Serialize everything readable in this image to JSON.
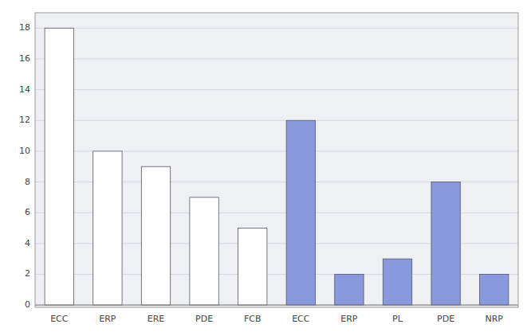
{
  "chart_data": {
    "type": "bar",
    "categories": [
      "ECC",
      "ERP",
      "ERE",
      "PDE",
      "FCB",
      "ECC",
      "ERP",
      "PL",
      "PDE",
      "NRP"
    ],
    "values": [
      18,
      10,
      9,
      7,
      5,
      12,
      2,
      3,
      8,
      2
    ],
    "colors": [
      "#ffffff",
      "#ffffff",
      "#ffffff",
      "#ffffff",
      "#ffffff",
      "#8899dd",
      "#8899dd",
      "#8899dd",
      "#8899dd",
      "#8899dd"
    ],
    "ylim": [
      -0.15,
      19
    ],
    "yticks": [
      0,
      2,
      4,
      6,
      8,
      10,
      12,
      14,
      16,
      18
    ],
    "grid": true
  }
}
